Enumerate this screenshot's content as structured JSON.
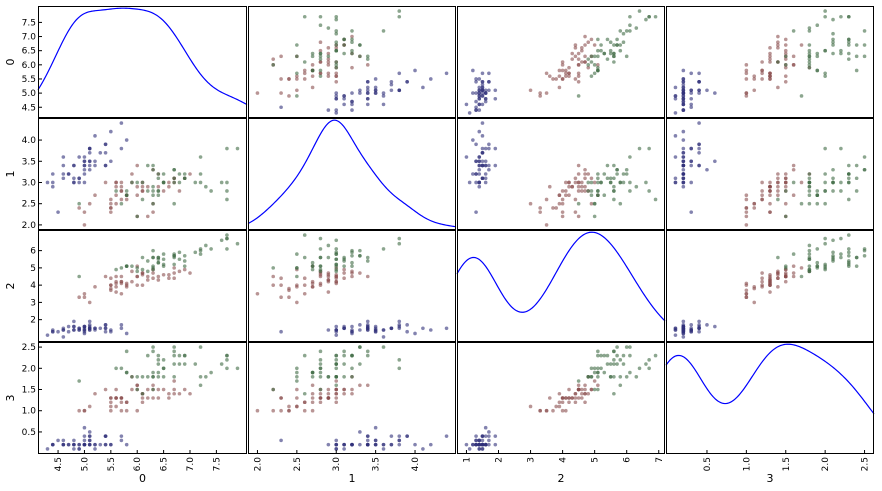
{
  "chart_data": {
    "type": "scatter",
    "variables": [
      "0",
      "1",
      "2",
      "3"
    ],
    "diagonal": "kde",
    "colors": {
      "setosa": "#30307a",
      "versicolor": "#8a4f4f",
      "virginica": "#3f6a45",
      "kde": "#0000ff",
      "frame": "#000000"
    },
    "ranges": {
      "0": [
        4.3,
        7.9
      ],
      "1": [
        2.0,
        4.4
      ],
      "2": [
        1.0,
        6.9
      ],
      "3": [
        0.1,
        2.5
      ]
    },
    "ticks": {
      "0": [
        "4.5",
        "5.0",
        "5.5",
        "6.0",
        "6.5",
        "7.0",
        "7.5"
      ],
      "1": [
        "2.0",
        "2.5",
        "3.0",
        "3.5",
        "4.0"
      ],
      "2": [
        "1",
        "2",
        "3",
        "4",
        "5",
        "6",
        "7"
      ],
      "3": [
        "0.5",
        "1.0",
        "1.5",
        "2.0",
        "2.5"
      ]
    },
    "ytick_labels": {
      "0": [
        "4.5",
        "5.0",
        "5.5",
        "6.0",
        "6.5",
        "7.0",
        "7.5"
      ],
      "1": [
        "2.0",
        "2.5",
        "3.0",
        "3.5",
        "4.0"
      ],
      "2": [
        "2",
        "3",
        "4",
        "5",
        "6"
      ],
      "3": [
        "0.5",
        "1.0",
        "1.5",
        "2.0",
        "2.5"
      ]
    },
    "points": {
      "setosa": [
        [
          5.1,
          3.5,
          1.4,
          0.2
        ],
        [
          4.9,
          3.0,
          1.4,
          0.2
        ],
        [
          4.7,
          3.2,
          1.3,
          0.2
        ],
        [
          4.6,
          3.1,
          1.5,
          0.2
        ],
        [
          5.0,
          3.6,
          1.4,
          0.2
        ],
        [
          5.4,
          3.9,
          1.7,
          0.4
        ],
        [
          4.6,
          3.4,
          1.4,
          0.3
        ],
        [
          5.0,
          3.4,
          1.5,
          0.2
        ],
        [
          4.4,
          2.9,
          1.4,
          0.2
        ],
        [
          4.9,
          3.1,
          1.5,
          0.1
        ],
        [
          5.4,
          3.7,
          1.5,
          0.2
        ],
        [
          4.8,
          3.4,
          1.6,
          0.2
        ],
        [
          4.8,
          3.0,
          1.4,
          0.1
        ],
        [
          4.3,
          3.0,
          1.1,
          0.1
        ],
        [
          5.8,
          4.0,
          1.2,
          0.2
        ],
        [
          5.7,
          4.4,
          1.5,
          0.4
        ],
        [
          5.4,
          3.9,
          1.3,
          0.4
        ],
        [
          5.1,
          3.5,
          1.4,
          0.3
        ],
        [
          5.7,
          3.8,
          1.7,
          0.3
        ],
        [
          5.1,
          3.8,
          1.5,
          0.3
        ],
        [
          5.4,
          3.4,
          1.7,
          0.2
        ],
        [
          5.1,
          3.7,
          1.5,
          0.4
        ],
        [
          4.6,
          3.6,
          1.0,
          0.2
        ],
        [
          5.1,
          3.3,
          1.7,
          0.5
        ],
        [
          4.8,
          3.4,
          1.9,
          0.2
        ],
        [
          5.0,
          3.0,
          1.6,
          0.2
        ],
        [
          5.0,
          3.4,
          1.6,
          0.4
        ],
        [
          5.2,
          3.5,
          1.5,
          0.2
        ],
        [
          5.2,
          3.4,
          1.4,
          0.2
        ],
        [
          4.7,
          3.2,
          1.6,
          0.2
        ],
        [
          4.8,
          3.1,
          1.6,
          0.2
        ],
        [
          5.4,
          3.4,
          1.5,
          0.4
        ],
        [
          5.2,
          4.1,
          1.5,
          0.1
        ],
        [
          5.5,
          4.2,
          1.4,
          0.2
        ],
        [
          4.9,
          3.1,
          1.5,
          0.2
        ],
        [
          5.0,
          3.2,
          1.2,
          0.2
        ],
        [
          5.5,
          3.5,
          1.3,
          0.2
        ],
        [
          4.9,
          3.6,
          1.4,
          0.1
        ],
        [
          4.4,
          3.0,
          1.3,
          0.2
        ],
        [
          5.1,
          3.4,
          1.5,
          0.2
        ],
        [
          5.0,
          3.5,
          1.3,
          0.3
        ],
        [
          4.5,
          2.3,
          1.3,
          0.3
        ],
        [
          4.4,
          3.2,
          1.3,
          0.2
        ],
        [
          5.0,
          3.5,
          1.6,
          0.6
        ],
        [
          5.1,
          3.8,
          1.9,
          0.4
        ],
        [
          4.8,
          3.0,
          1.4,
          0.3
        ],
        [
          5.1,
          3.8,
          1.6,
          0.2
        ],
        [
          4.6,
          3.2,
          1.4,
          0.2
        ],
        [
          5.3,
          3.7,
          1.5,
          0.2
        ],
        [
          5.0,
          3.3,
          1.4,
          0.2
        ]
      ],
      "versicolor": [
        [
          7.0,
          3.2,
          4.7,
          1.4
        ],
        [
          6.4,
          3.2,
          4.5,
          1.5
        ],
        [
          6.9,
          3.1,
          4.9,
          1.5
        ],
        [
          5.5,
          2.3,
          4.0,
          1.3
        ],
        [
          6.5,
          2.8,
          4.6,
          1.5
        ],
        [
          5.7,
          2.8,
          4.5,
          1.3
        ],
        [
          6.3,
          3.3,
          4.7,
          1.6
        ],
        [
          4.9,
          2.4,
          3.3,
          1.0
        ],
        [
          6.6,
          2.9,
          4.6,
          1.3
        ],
        [
          5.2,
          2.7,
          3.9,
          1.4
        ],
        [
          5.0,
          2.0,
          3.5,
          1.0
        ],
        [
          5.9,
          3.0,
          4.2,
          1.5
        ],
        [
          6.0,
          2.2,
          4.0,
          1.0
        ],
        [
          6.1,
          2.9,
          4.7,
          1.4
        ],
        [
          5.6,
          2.9,
          3.6,
          1.3
        ],
        [
          6.7,
          3.1,
          4.4,
          1.4
        ],
        [
          5.6,
          3.0,
          4.5,
          1.5
        ],
        [
          5.8,
          2.7,
          4.1,
          1.0
        ],
        [
          6.2,
          2.2,
          4.5,
          1.5
        ],
        [
          5.6,
          2.5,
          3.9,
          1.1
        ],
        [
          5.9,
          3.2,
          4.8,
          1.8
        ],
        [
          6.1,
          2.8,
          4.0,
          1.3
        ],
        [
          6.3,
          2.5,
          4.9,
          1.5
        ],
        [
          6.1,
          2.8,
          4.7,
          1.2
        ],
        [
          6.4,
          2.9,
          4.3,
          1.3
        ],
        [
          6.6,
          3.0,
          4.4,
          1.4
        ],
        [
          6.8,
          2.8,
          4.8,
          1.4
        ],
        [
          6.7,
          3.0,
          5.0,
          1.7
        ],
        [
          6.0,
          2.9,
          4.5,
          1.5
        ],
        [
          5.7,
          2.6,
          3.5,
          1.0
        ],
        [
          5.5,
          2.4,
          3.8,
          1.1
        ],
        [
          5.5,
          2.4,
          3.7,
          1.0
        ],
        [
          5.8,
          2.7,
          3.9,
          1.2
        ],
        [
          6.0,
          2.7,
          5.1,
          1.6
        ],
        [
          5.4,
          3.0,
          4.5,
          1.5
        ],
        [
          6.0,
          3.4,
          4.5,
          1.6
        ],
        [
          6.7,
          3.1,
          4.7,
          1.5
        ],
        [
          6.3,
          2.3,
          4.4,
          1.3
        ],
        [
          5.6,
          3.0,
          4.1,
          1.3
        ],
        [
          5.5,
          2.5,
          4.0,
          1.3
        ],
        [
          5.5,
          2.6,
          4.4,
          1.2
        ],
        [
          6.1,
          3.0,
          4.6,
          1.4
        ],
        [
          5.8,
          2.6,
          4.0,
          1.2
        ],
        [
          5.0,
          2.3,
          3.3,
          1.0
        ],
        [
          5.6,
          2.7,
          4.2,
          1.3
        ],
        [
          5.7,
          3.0,
          4.2,
          1.2
        ],
        [
          5.7,
          2.9,
          4.2,
          1.3
        ],
        [
          6.2,
          2.9,
          4.3,
          1.3
        ],
        [
          5.1,
          2.5,
          3.0,
          1.1
        ],
        [
          5.7,
          2.8,
          4.1,
          1.3
        ]
      ],
      "virginica": [
        [
          6.3,
          3.3,
          6.0,
          2.5
        ],
        [
          5.8,
          2.7,
          5.1,
          1.9
        ],
        [
          7.1,
          3.0,
          5.9,
          2.1
        ],
        [
          6.3,
          2.9,
          5.6,
          1.8
        ],
        [
          6.5,
          3.0,
          5.8,
          2.2
        ],
        [
          7.6,
          3.0,
          6.6,
          2.1
        ],
        [
          4.9,
          2.5,
          4.5,
          1.7
        ],
        [
          7.3,
          2.9,
          6.3,
          1.8
        ],
        [
          6.7,
          2.5,
          5.8,
          1.8
        ],
        [
          7.2,
          3.6,
          6.1,
          2.5
        ],
        [
          6.5,
          3.2,
          5.1,
          2.0
        ],
        [
          6.4,
          2.7,
          5.3,
          1.9
        ],
        [
          6.8,
          3.0,
          5.5,
          2.1
        ],
        [
          5.7,
          2.5,
          5.0,
          2.0
        ],
        [
          5.8,
          2.8,
          5.1,
          2.4
        ],
        [
          6.4,
          3.2,
          5.3,
          2.3
        ],
        [
          6.5,
          3.0,
          5.5,
          1.8
        ],
        [
          7.7,
          3.8,
          6.7,
          2.2
        ],
        [
          7.7,
          2.6,
          6.9,
          2.3
        ],
        [
          6.0,
          2.2,
          5.0,
          1.5
        ],
        [
          6.9,
          3.2,
          5.7,
          2.3
        ],
        [
          5.6,
          2.8,
          4.9,
          2.0
        ],
        [
          7.7,
          2.8,
          6.7,
          2.0
        ],
        [
          6.3,
          2.7,
          4.9,
          1.8
        ],
        [
          6.7,
          3.3,
          5.7,
          2.1
        ],
        [
          7.2,
          3.2,
          6.0,
          1.8
        ],
        [
          6.2,
          2.8,
          4.8,
          1.8
        ],
        [
          6.1,
          3.0,
          4.9,
          1.8
        ],
        [
          6.4,
          2.8,
          5.6,
          2.1
        ],
        [
          7.2,
          3.0,
          5.8,
          1.6
        ],
        [
          7.4,
          2.8,
          6.1,
          1.9
        ],
        [
          7.9,
          3.8,
          6.4,
          2.0
        ],
        [
          6.4,
          2.8,
          5.6,
          2.2
        ],
        [
          6.3,
          2.8,
          5.1,
          1.5
        ],
        [
          6.1,
          2.6,
          5.6,
          1.4
        ],
        [
          7.7,
          3.0,
          6.1,
          2.3
        ],
        [
          6.3,
          3.4,
          5.6,
          2.4
        ],
        [
          6.4,
          3.1,
          5.5,
          1.8
        ],
        [
          6.0,
          3.0,
          4.8,
          1.8
        ],
        [
          6.9,
          3.1,
          5.4,
          2.1
        ],
        [
          6.7,
          3.1,
          5.6,
          2.4
        ],
        [
          6.9,
          3.1,
          5.1,
          2.3
        ],
        [
          5.8,
          2.7,
          5.1,
          1.9
        ],
        [
          6.8,
          3.2,
          5.9,
          2.3
        ],
        [
          6.7,
          3.3,
          5.7,
          2.5
        ],
        [
          6.7,
          3.0,
          5.2,
          2.3
        ],
        [
          6.3,
          2.5,
          5.0,
          1.9
        ],
        [
          6.5,
          3.0,
          5.2,
          2.0
        ],
        [
          6.2,
          3.4,
          5.4,
          2.3
        ],
        [
          5.9,
          3.0,
          5.1,
          1.8
        ]
      ]
    }
  }
}
